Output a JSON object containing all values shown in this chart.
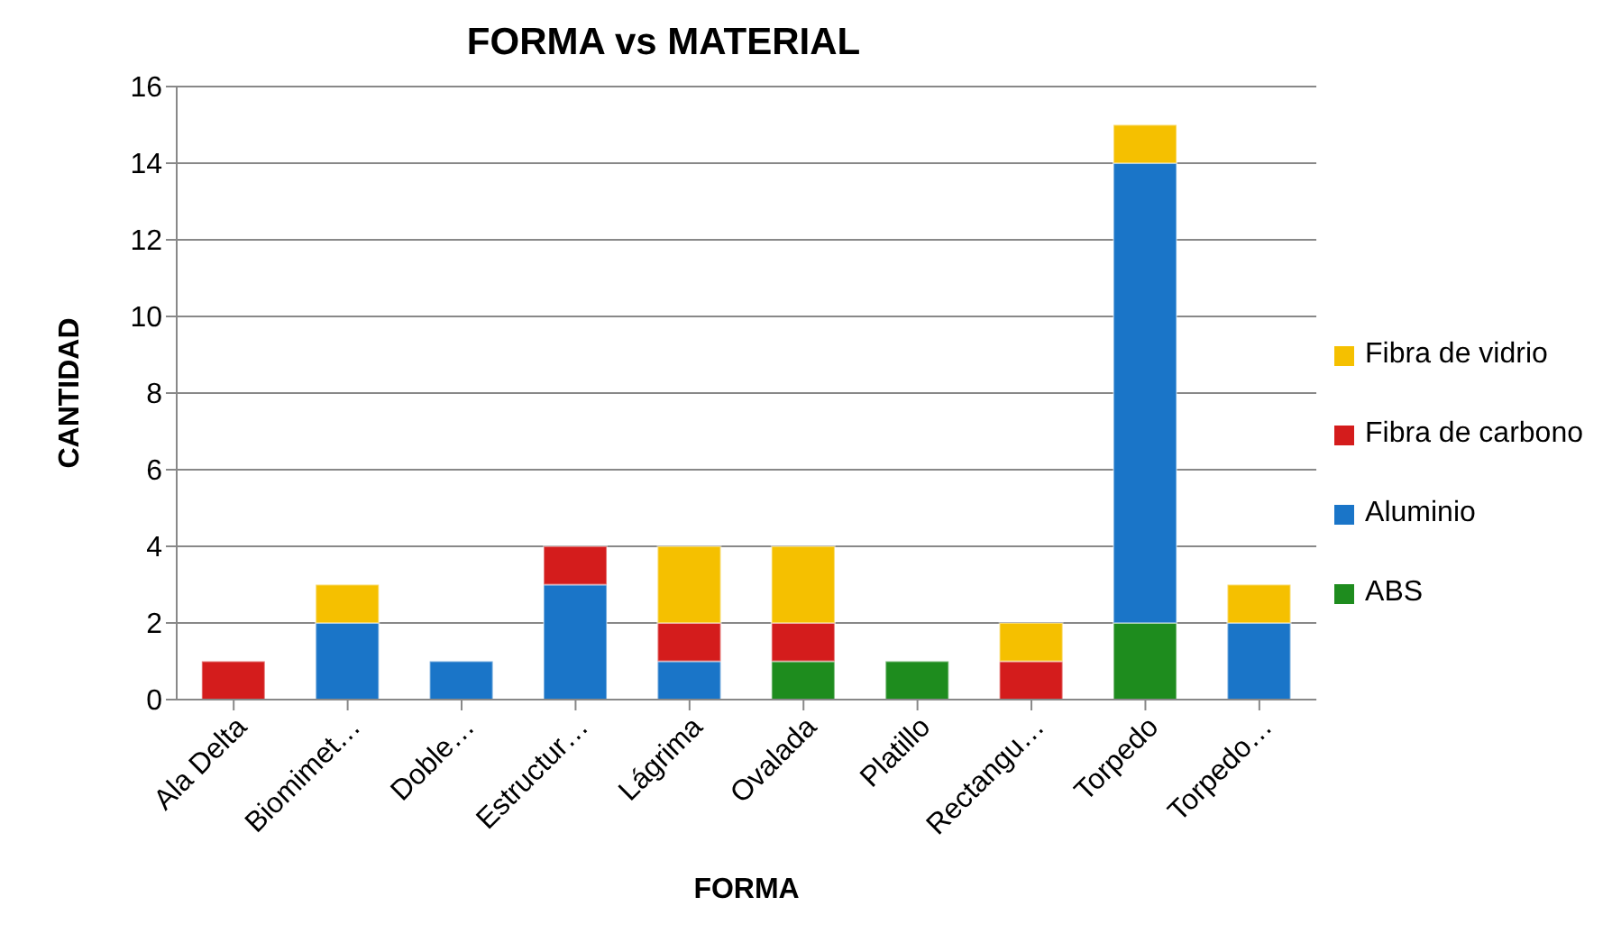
{
  "chart_data": {
    "type": "bar",
    "title": "FORMA vs MATERIAL",
    "xlabel": "FORMA",
    "ylabel": "CANTIDAD",
    "categories": [
      "Ala Delta",
      "Biomimet…",
      "Doble…",
      "Estructur…",
      "Lágrima",
      "Ovalada",
      "Platillo",
      "Rectangu…",
      "Torpedo",
      "Torpedo…"
    ],
    "stacked": true,
    "series": [
      {
        "name": "ABS",
        "color": "#1e8c1e",
        "values": [
          0,
          0,
          0,
          0,
          0,
          1,
          1,
          0,
          2,
          0
        ]
      },
      {
        "name": "Aluminio",
        "color": "#1a75c8",
        "values": [
          0,
          2,
          1,
          3,
          1,
          0,
          0,
          0,
          12,
          2
        ]
      },
      {
        "name": "Fibra de carbono",
        "color": "#d41c1c",
        "values": [
          1,
          0,
          0,
          1,
          1,
          1,
          0,
          1,
          0,
          0
        ]
      },
      {
        "name": "Fibra de vidrio",
        "color": "#f5c000",
        "values": [
          0,
          1,
          0,
          0,
          2,
          2,
          0,
          1,
          1,
          1
        ]
      }
    ],
    "ylim": [
      0,
      16
    ],
    "yticks": [
      0,
      2,
      4,
      6,
      8,
      10,
      12,
      14,
      16
    ],
    "grid": "y",
    "legend": "right"
  }
}
